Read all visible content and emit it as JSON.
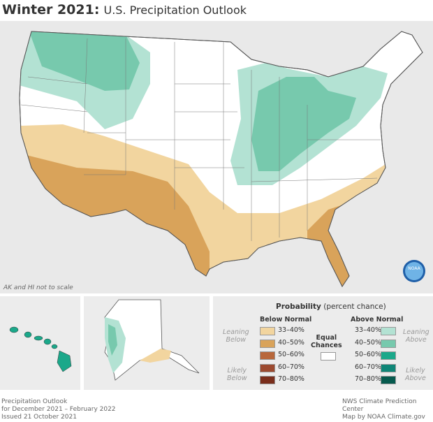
{
  "title": {
    "bold": "Winter 2021:",
    "rest": "U.S. Precipitation Outlook"
  },
  "map": {
    "note": "AK and HI not to scale",
    "logo": "NOAA"
  },
  "legend": {
    "heading_bold": "Probability",
    "heading_rest": "(percent chance)",
    "below_title": "Below Normal",
    "above_title": "Above Normal",
    "equal_label": [
      "Equal",
      "Chances"
    ],
    "leaning_below": [
      "Leaning",
      "Below"
    ],
    "likely_below": [
      "Likely",
      "Below"
    ],
    "leaning_above": [
      "Leaning",
      "Above"
    ],
    "likely_above": [
      "Likely",
      "Above"
    ],
    "below": [
      {
        "range": "33–40%",
        "color": "#f2d59f"
      },
      {
        "range": "40–50%",
        "color": "#d9a35a"
      },
      {
        "range": "50–60%",
        "color": "#b8673b"
      },
      {
        "range": "60–70%",
        "color": "#9c4a30"
      },
      {
        "range": "70–80%",
        "color": "#7a2e1c"
      }
    ],
    "above": [
      {
        "range": "33–40%",
        "color": "#b3e2d3"
      },
      {
        "range": "40–50%",
        "color": "#77c9ad"
      },
      {
        "range": "50–60%",
        "color": "#1ba88a"
      },
      {
        "range": "60–70%",
        "color": "#0f8677"
      },
      {
        "range": "70–80%",
        "color": "#065a4e"
      }
    ],
    "equal_color": "#ffffff"
  },
  "footer": {
    "left": [
      "Precipitation Outlook",
      "for December 2021 – February 2022",
      "Issued 21 October 2021"
    ],
    "right": [
      "NWS Climate Prediction Center",
      "Map by NOAA Climate.gov"
    ]
  }
}
